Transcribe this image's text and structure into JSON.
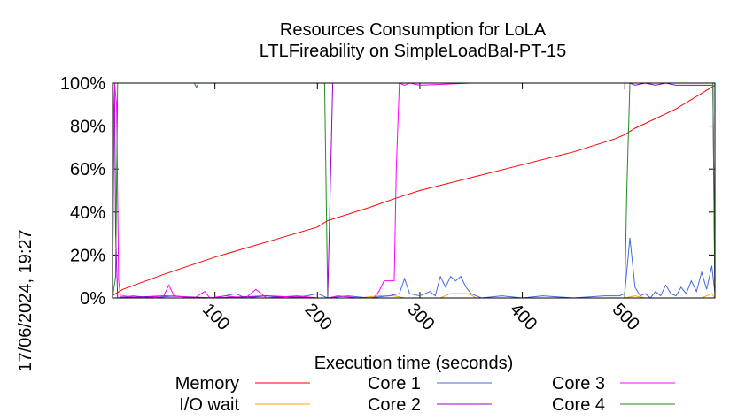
{
  "chart_data": {
    "type": "line",
    "title": "Resources Consumption for LoLA",
    "subtitle": "LTLFireability on SimpleLoadBal-PT-15",
    "xlabel": "Execution time (seconds)",
    "ylabel": "",
    "timestamp": "17/06/2024, 19:27",
    "xlim": [
      0,
      588
    ],
    "ylim": [
      0,
      100
    ],
    "x_ticks": [
      100,
      200,
      300,
      400,
      500
    ],
    "y_ticks": [
      0,
      20,
      40,
      60,
      80,
      100
    ],
    "y_tick_labels": [
      "0%",
      "20%",
      "40%",
      "60%",
      "80%",
      "100%"
    ],
    "grid": false,
    "legend_position": "bottom",
    "series": [
      {
        "name": "Memory",
        "color": "#ff0000",
        "points": [
          [
            0,
            1
          ],
          [
            3,
            2
          ],
          [
            10,
            4
          ],
          [
            50,
            11
          ],
          [
            100,
            19
          ],
          [
            150,
            26
          ],
          [
            200,
            33
          ],
          [
            210,
            36
          ],
          [
            250,
            42
          ],
          [
            280,
            47
          ],
          [
            300,
            50
          ],
          [
            350,
            56
          ],
          [
            400,
            62
          ],
          [
            450,
            68
          ],
          [
            490,
            74
          ],
          [
            500,
            76
          ],
          [
            510,
            79
          ],
          [
            550,
            88
          ],
          [
            588,
            99
          ]
        ]
      },
      {
        "name": "I/O wait",
        "color": "#ffa500",
        "points": [
          [
            0,
            0
          ],
          [
            150,
            0
          ],
          [
            220,
            0
          ],
          [
            240,
            0
          ],
          [
            260,
            1
          ],
          [
            275,
            1
          ],
          [
            285,
            0
          ],
          [
            320,
            0
          ],
          [
            330,
            2
          ],
          [
            340,
            2
          ],
          [
            348,
            2
          ],
          [
            355,
            0
          ],
          [
            500,
            0
          ],
          [
            510,
            1
          ],
          [
            520,
            0
          ],
          [
            575,
            0
          ],
          [
            580,
            1
          ],
          [
            585,
            2
          ],
          [
            588,
            0
          ]
        ]
      },
      {
        "name": "Core 1",
        "color": "#4169e1",
        "points": [
          [
            0,
            0
          ],
          [
            5,
            0
          ],
          [
            20,
            1
          ],
          [
            40,
            0
          ],
          [
            60,
            1
          ],
          [
            80,
            0
          ],
          [
            100,
            0
          ],
          [
            110,
            1
          ],
          [
            120,
            2
          ],
          [
            130,
            0
          ],
          [
            150,
            1
          ],
          [
            170,
            0
          ],
          [
            190,
            1
          ],
          [
            200,
            2
          ],
          [
            210,
            0
          ],
          [
            230,
            1
          ],
          [
            250,
            0
          ],
          [
            270,
            1
          ],
          [
            280,
            2
          ],
          [
            285,
            9
          ],
          [
            290,
            2
          ],
          [
            300,
            1
          ],
          [
            310,
            3
          ],
          [
            315,
            1
          ],
          [
            320,
            10
          ],
          [
            325,
            5
          ],
          [
            330,
            10
          ],
          [
            335,
            8
          ],
          [
            340,
            10
          ],
          [
            345,
            5
          ],
          [
            350,
            2
          ],
          [
            360,
            0
          ],
          [
            380,
            1
          ],
          [
            400,
            0
          ],
          [
            420,
            1
          ],
          [
            450,
            0
          ],
          [
            480,
            1
          ],
          [
            495,
            1
          ],
          [
            500,
            2
          ],
          [
            505,
            28
          ],
          [
            510,
            5
          ],
          [
            515,
            1
          ],
          [
            520,
            2
          ],
          [
            525,
            0
          ],
          [
            530,
            3
          ],
          [
            535,
            1
          ],
          [
            540,
            6
          ],
          [
            545,
            2
          ],
          [
            550,
            1
          ],
          [
            555,
            5
          ],
          [
            560,
            2
          ],
          [
            565,
            8
          ],
          [
            570,
            3
          ],
          [
            575,
            12
          ],
          [
            580,
            4
          ],
          [
            585,
            15
          ],
          [
            588,
            2
          ]
        ]
      },
      {
        "name": "Core 2",
        "color": "#9400d3",
        "points": [
          [
            0,
            0
          ],
          [
            1,
            85
          ],
          [
            2,
            100
          ],
          [
            3,
            30
          ],
          [
            5,
            0
          ],
          [
            50,
            1
          ],
          [
            100,
            0
          ],
          [
            150,
            1
          ],
          [
            200,
            0
          ],
          [
            210,
            0
          ],
          [
            212,
            40
          ],
          [
            215,
            100
          ],
          [
            280,
            100
          ],
          [
            285,
            100
          ],
          [
            290,
            100
          ],
          [
            350,
            100
          ],
          [
            400,
            100
          ],
          [
            450,
            100
          ],
          [
            500,
            100
          ],
          [
            505,
            100
          ],
          [
            510,
            99
          ],
          [
            520,
            100
          ],
          [
            530,
            99
          ],
          [
            540,
            100
          ],
          [
            550,
            99
          ],
          [
            560,
            99
          ],
          [
            570,
            99
          ],
          [
            580,
            99
          ],
          [
            586,
            99
          ],
          [
            588,
            0
          ]
        ]
      },
      {
        "name": "Core 3",
        "color": "#ff00ff",
        "points": [
          [
            0,
            0
          ],
          [
            2,
            100
          ],
          [
            4,
            90
          ],
          [
            6,
            8
          ],
          [
            8,
            0
          ],
          [
            10,
            1
          ],
          [
            30,
            0
          ],
          [
            50,
            1
          ],
          [
            55,
            6
          ],
          [
            60,
            1
          ],
          [
            80,
            0
          ],
          [
            90,
            3
          ],
          [
            95,
            0
          ],
          [
            110,
            1
          ],
          [
            130,
            0
          ],
          [
            140,
            4
          ],
          [
            150,
            0
          ],
          [
            180,
            1
          ],
          [
            200,
            0
          ],
          [
            210,
            0
          ],
          [
            220,
            1
          ],
          [
            240,
            0
          ],
          [
            255,
            0
          ],
          [
            260,
            3
          ],
          [
            265,
            8
          ],
          [
            270,
            8
          ],
          [
            275,
            8
          ],
          [
            277,
            60
          ],
          [
            280,
            100
          ],
          [
            285,
            99
          ],
          [
            290,
            100
          ],
          [
            300,
            99
          ],
          [
            350,
            100
          ],
          [
            500,
            100
          ],
          [
            588,
            100
          ]
        ]
      },
      {
        "name": "Core 4",
        "color": "#228b22",
        "points": [
          [
            0,
            0
          ],
          [
            3,
            10
          ],
          [
            5,
            100
          ],
          [
            80,
            100
          ],
          [
            82,
            98
          ],
          [
            84,
            100
          ],
          [
            200,
            100
          ],
          [
            207,
            100
          ],
          [
            210,
            0
          ],
          [
            212,
            0
          ],
          [
            230,
            0
          ],
          [
            280,
            0
          ],
          [
            300,
            0
          ],
          [
            400,
            0
          ],
          [
            480,
            0
          ],
          [
            500,
            0
          ],
          [
            502,
            50
          ],
          [
            505,
            100
          ],
          [
            510,
            100
          ],
          [
            540,
            100
          ],
          [
            586,
            100
          ],
          [
            588,
            0
          ]
        ]
      }
    ]
  }
}
